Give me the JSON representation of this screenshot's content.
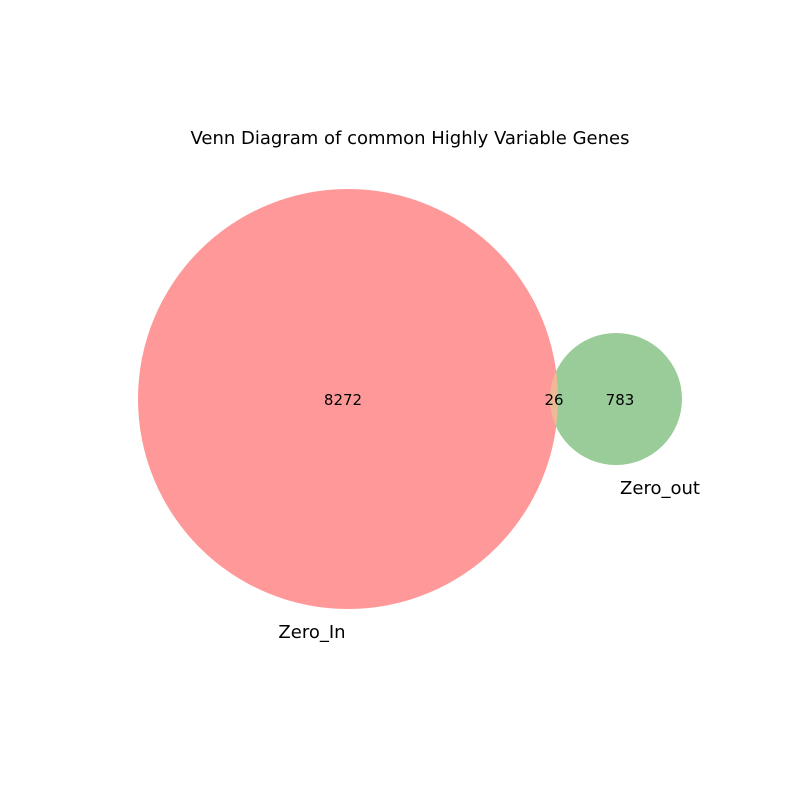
{
  "chart_data": {
    "type": "venn",
    "title": "Venn Diagram of common Highly Variable Genes",
    "sets": [
      {
        "name": "Zero_In",
        "only": 8272,
        "color": "#ff9999"
      },
      {
        "name": "Zero_out",
        "only": 783,
        "color": "#99cc99"
      }
    ],
    "intersection": 26,
    "intersection_color": "#f0b995"
  }
}
